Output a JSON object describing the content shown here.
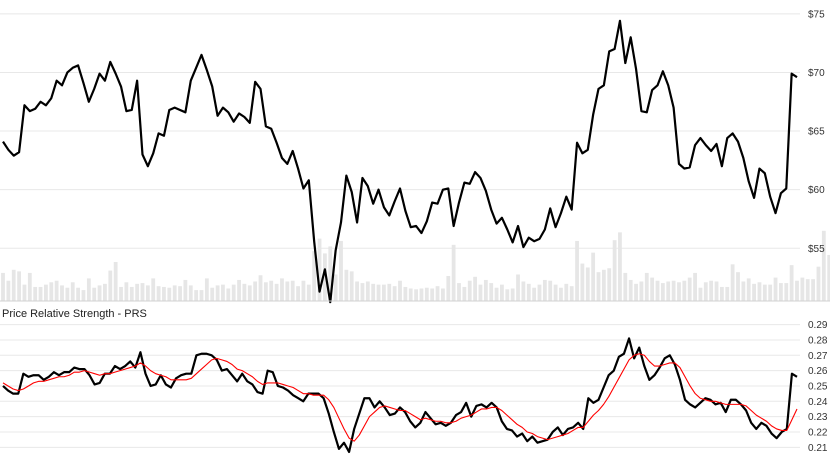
{
  "chart_data": [
    {
      "type": "line",
      "panel": "price",
      "title": "",
      "xlabel": "",
      "ylabel": "",
      "ylim": [
        50.5,
        75.5
      ],
      "yticks": [
        55,
        60,
        65,
        70,
        75
      ],
      "ytick_labels": [
        "$55",
        "$60",
        "$65",
        "$70",
        "$75"
      ],
      "grid": true,
      "colors": {
        "price": "#000000",
        "volume": "#e6e6e6",
        "grid": "#e8e8e8"
      },
      "series": [
        {
          "role": "price",
          "values": [
            64.1,
            63.4,
            62.9,
            63.2,
            67.2,
            66.7,
            66.9,
            67.5,
            67.2,
            67.8,
            69.3,
            68.9,
            70.0,
            70.4,
            70.6,
            69.1,
            67.5,
            68.6,
            69.9,
            69.3,
            70.9,
            69.9,
            68.8,
            66.7,
            66.8,
            69.3,
            63.0,
            62.0,
            63.1,
            64.8,
            64.6,
            66.8,
            67.0,
            66.8,
            66.6,
            69.3,
            70.4,
            71.5,
            70.2,
            68.8,
            66.3,
            67.0,
            66.6,
            65.8,
            66.5,
            66.2,
            65.7,
            69.2,
            68.6,
            65.4,
            65.2,
            64.0,
            62.7,
            62.2,
            63.3,
            61.8,
            60.1,
            60.8,
            55.6,
            51.3,
            53.2,
            50.4,
            54.8,
            57.2,
            61.2,
            59.8,
            57.2,
            61.0,
            60.3,
            58.8,
            60.0,
            58.5,
            57.8,
            59.0,
            60.1,
            58.2,
            56.8,
            56.9,
            56.3,
            57.3,
            58.9,
            58.8,
            60.0,
            60.1,
            56.9,
            58.9,
            60.6,
            60.5,
            61.5,
            61.0,
            59.9,
            58.3,
            57.1,
            57.6,
            56.6,
            55.5,
            56.9,
            55.1,
            55.9,
            55.6,
            55.8,
            56.6,
            58.4,
            56.8,
            58.0,
            59.4,
            58.3,
            64.0,
            63.1,
            63.4,
            66.4,
            68.6,
            68.9,
            71.8,
            72.0,
            74.4,
            70.8,
            73.0,
            70.3,
            66.7,
            66.6,
            68.5,
            68.9,
            70.1,
            68.9,
            67.0,
            62.2,
            61.8,
            61.9,
            63.8,
            64.4,
            63.8,
            63.3,
            63.9,
            62.0,
            64.4,
            64.8,
            64.1,
            62.7,
            60.7,
            59.3,
            61.8,
            61.4,
            59.4,
            58.0,
            59.7,
            60.1,
            69.9,
            69.6
          ]
        },
        {
          "role": "volume",
          "relative_values": [
            0.36,
            0.26,
            0.4,
            0.38,
            0.21,
            0.36,
            0.18,
            0.18,
            0.21,
            0.24,
            0.26,
            0.2,
            0.17,
            0.24,
            0.17,
            0.14,
            0.29,
            0.17,
            0.2,
            0.22,
            0.39,
            0.5,
            0.18,
            0.24,
            0.18,
            0.22,
            0.23,
            0.2,
            0.29,
            0.19,
            0.18,
            0.17,
            0.2,
            0.19,
            0.27,
            0.2,
            0.14,
            0.14,
            0.29,
            0.17,
            0.2,
            0.21,
            0.16,
            0.21,
            0.27,
            0.22,
            0.2,
            0.25,
            0.33,
            0.24,
            0.26,
            0.22,
            0.29,
            0.25,
            0.26,
            0.19,
            0.26,
            0.21,
            0.64,
            0.8,
            0.61,
            0.7,
            0.34,
            0.77,
            0.4,
            0.38,
            0.25,
            0.23,
            0.25,
            0.22,
            0.21,
            0.21,
            0.22,
            0.19,
            0.26,
            0.18,
            0.16,
            0.15,
            0.16,
            0.17,
            0.16,
            0.19,
            0.16,
            0.32,
            0.72,
            0.23,
            0.18,
            0.26,
            0.31,
            0.21,
            0.27,
            0.23,
            0.17,
            0.21,
            0.15,
            0.16,
            0.34,
            0.25,
            0.22,
            0.17,
            0.21,
            0.27,
            0.26,
            0.21,
            0.17,
            0.22,
            0.19,
            0.77,
            0.48,
            0.43,
            0.62,
            0.37,
            0.4,
            0.42,
            0.78,
            0.88,
            0.36,
            0.27,
            0.22,
            0.25,
            0.36,
            0.3,
            0.26,
            0.23,
            0.25,
            0.26,
            0.24,
            0.26,
            0.3,
            0.36,
            0.17,
            0.24,
            0.26,
            0.25,
            0.18,
            0.18,
            0.47,
            0.37,
            0.25,
            0.29,
            0.22,
            0.24,
            0.21,
            0.21,
            0.3,
            0.23,
            0.23,
            0.46,
            0.26,
            0.3,
            0.28,
            0.28,
            0.44,
            0.9,
            0.59
          ]
        }
      ]
    },
    {
      "type": "line",
      "panel": "indicator",
      "title": "Price Relative Strength - PRS",
      "xlabel": "",
      "ylabel": "",
      "ylim": [
        0.205,
        0.293
      ],
      "yticks": [
        0.21,
        0.22,
        0.23,
        0.24,
        0.25,
        0.26,
        0.27,
        0.28,
        0.29
      ],
      "ytick_labels": [
        "0.21",
        "0.22",
        "0.23",
        "0.24",
        "0.25",
        "0.26",
        "0.27",
        "0.28",
        "0.29"
      ],
      "grid": true,
      "colors": {
        "prs": "#000000",
        "signal": "#ff0000",
        "grid": "#e8e8e8"
      },
      "series": [
        {
          "role": "prs",
          "values": [
            0.25,
            0.247,
            0.245,
            0.245,
            0.258,
            0.256,
            0.257,
            0.257,
            0.254,
            0.256,
            0.259,
            0.257,
            0.259,
            0.259,
            0.262,
            0.261,
            0.261,
            0.257,
            0.251,
            0.252,
            0.258,
            0.258,
            0.263,
            0.261,
            0.263,
            0.266,
            0.262,
            0.272,
            0.258,
            0.25,
            0.251,
            0.257,
            0.251,
            0.249,
            0.255,
            0.257,
            0.258,
            0.258,
            0.27,
            0.271,
            0.271,
            0.27,
            0.267,
            0.26,
            0.261,
            0.257,
            0.253,
            0.258,
            0.253,
            0.251,
            0.246,
            0.245,
            0.26,
            0.259,
            0.25,
            0.249,
            0.247,
            0.244,
            0.242,
            0.24,
            0.245,
            0.245,
            0.245,
            0.242,
            0.232,
            0.22,
            0.209,
            0.213,
            0.207,
            0.222,
            0.232,
            0.242,
            0.242,
            0.236,
            0.24,
            0.236,
            0.231,
            0.232,
            0.236,
            0.233,
            0.227,
            0.223,
            0.226,
            0.233,
            0.229,
            0.225,
            0.226,
            0.224,
            0.226,
            0.231,
            0.233,
            0.239,
            0.23,
            0.237,
            0.238,
            0.236,
            0.239,
            0.236,
            0.227,
            0.222,
            0.221,
            0.217,
            0.219,
            0.214,
            0.217,
            0.213,
            0.214,
            0.215,
            0.22,
            0.223,
            0.218,
            0.222,
            0.223,
            0.226,
            0.222,
            0.242,
            0.239,
            0.241,
            0.249,
            0.257,
            0.26,
            0.269,
            0.271,
            0.281,
            0.268,
            0.275,
            0.263,
            0.254,
            0.257,
            0.262,
            0.268,
            0.27,
            0.264,
            0.254,
            0.241,
            0.238,
            0.236,
            0.239,
            0.242,
            0.241,
            0.238,
            0.239,
            0.233,
            0.241,
            0.241,
            0.238,
            0.234,
            0.226,
            0.222,
            0.226,
            0.224,
            0.219,
            0.216,
            0.22,
            0.222,
            0.258,
            0.256
          ]
        },
        {
          "role": "signal",
          "values": [
            0.252,
            0.25,
            0.248,
            0.247,
            0.248,
            0.25,
            0.252,
            0.253,
            0.253,
            0.254,
            0.255,
            0.256,
            0.256,
            0.257,
            0.259,
            0.259,
            0.26,
            0.259,
            0.258,
            0.257,
            0.258,
            0.258,
            0.259,
            0.26,
            0.261,
            0.262,
            0.263,
            0.265,
            0.263,
            0.26,
            0.258,
            0.257,
            0.256,
            0.254,
            0.254,
            0.254,
            0.254,
            0.255,
            0.258,
            0.261,
            0.264,
            0.267,
            0.268,
            0.267,
            0.266,
            0.264,
            0.261,
            0.26,
            0.258,
            0.256,
            0.253,
            0.251,
            0.252,
            0.252,
            0.252,
            0.251,
            0.25,
            0.249,
            0.247,
            0.245,
            0.245,
            0.244,
            0.244,
            0.244,
            0.241,
            0.236,
            0.229,
            0.222,
            0.216,
            0.214,
            0.218,
            0.224,
            0.23,
            0.233,
            0.236,
            0.237,
            0.236,
            0.235,
            0.234,
            0.234,
            0.232,
            0.23,
            0.228,
            0.229,
            0.228,
            0.227,
            0.227,
            0.226,
            0.226,
            0.227,
            0.229,
            0.23,
            0.231,
            0.233,
            0.235,
            0.235,
            0.236,
            0.236,
            0.234,
            0.231,
            0.228,
            0.225,
            0.223,
            0.22,
            0.219,
            0.217,
            0.216,
            0.215,
            0.216,
            0.217,
            0.218,
            0.219,
            0.221,
            0.223,
            0.223,
            0.227,
            0.231,
            0.234,
            0.238,
            0.243,
            0.249,
            0.255,
            0.261,
            0.267,
            0.27,
            0.271,
            0.27,
            0.266,
            0.263,
            0.263,
            0.264,
            0.265,
            0.265,
            0.262,
            0.256,
            0.25,
            0.245,
            0.242,
            0.241,
            0.24,
            0.24,
            0.239,
            0.238,
            0.238,
            0.238,
            0.238,
            0.237,
            0.234,
            0.231,
            0.229,
            0.227,
            0.224,
            0.222,
            0.221,
            0.221,
            0.228,
            0.235
          ]
        }
      ]
    }
  ]
}
